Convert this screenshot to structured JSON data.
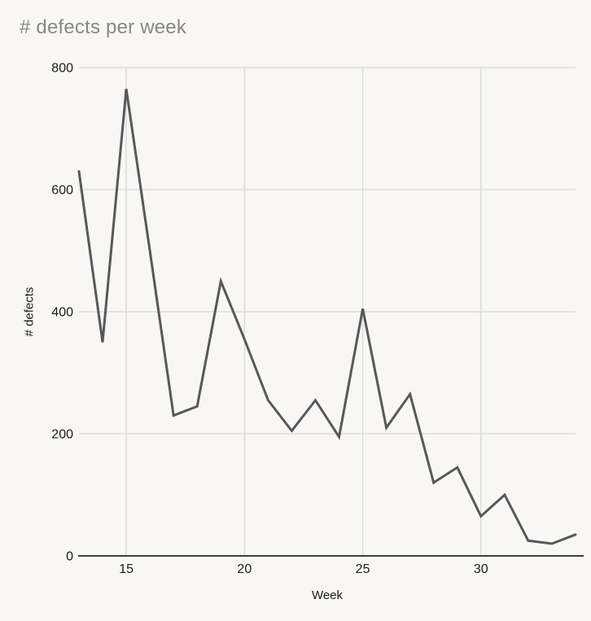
{
  "chart_data": {
    "type": "line",
    "title": "# defects per week",
    "xlabel": "Week",
    "ylabel": "# defects",
    "x": [
      13,
      14,
      15,
      16,
      17,
      18,
      19,
      20,
      21,
      22,
      23,
      24,
      25,
      26,
      27,
      28,
      29,
      30,
      31,
      32,
      33,
      34
    ],
    "values": [
      630,
      350,
      765,
      500,
      230,
      245,
      450,
      355,
      255,
      205,
      255,
      195,
      405,
      210,
      265,
      120,
      145,
      65,
      100,
      25,
      20,
      35
    ],
    "series_name": "# defects",
    "xlim": [
      13,
      34
    ],
    "ylim": [
      0,
      800
    ],
    "xticks": [
      15,
      20,
      25,
      30
    ],
    "yticks": [
      0,
      200,
      400,
      600,
      800
    ],
    "grid": true,
    "legend": "none",
    "colors": {
      "background": "#f8f7f4",
      "line": "#58585b",
      "grid": "#dcdcdc",
      "axis": "#3f3f3f",
      "title": "#888888",
      "tick_label": "#1a1a1a"
    }
  }
}
